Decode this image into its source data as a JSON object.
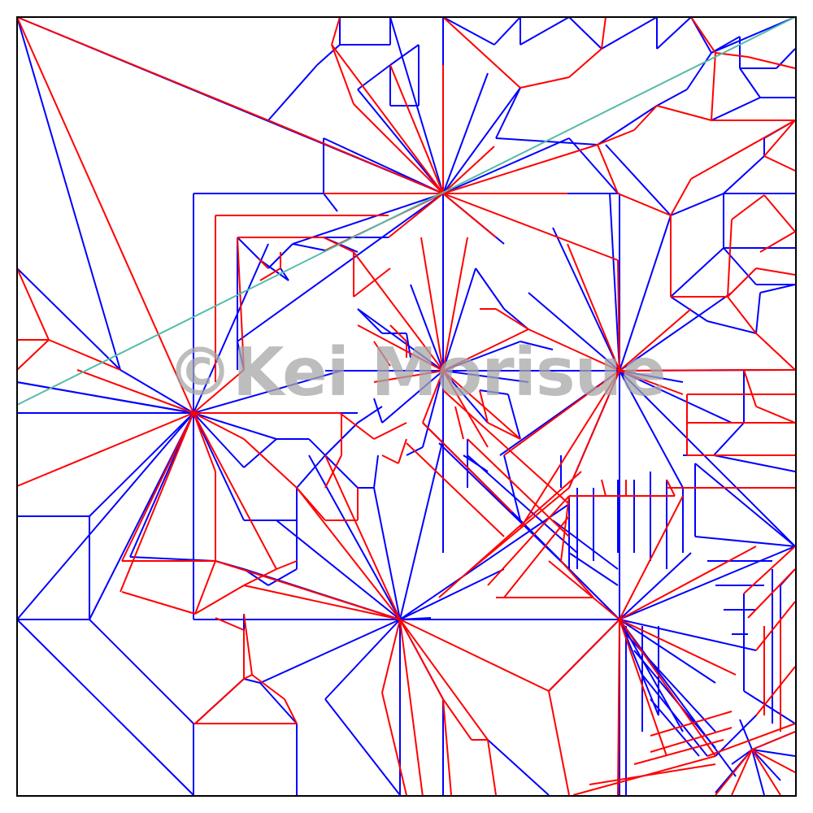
{
  "diagram": {
    "type": "origami-crease-pattern",
    "watermark": "©Kei Morisue",
    "colors": {
      "mountain": "#ff0000",
      "valley": "#0000ff",
      "auxiliary": "#55bbaa",
      "border": "#000000",
      "watermark": "#a8a8a8"
    },
    "line_types": [
      "border",
      "mountain",
      "valley",
      "auxiliary"
    ]
  }
}
